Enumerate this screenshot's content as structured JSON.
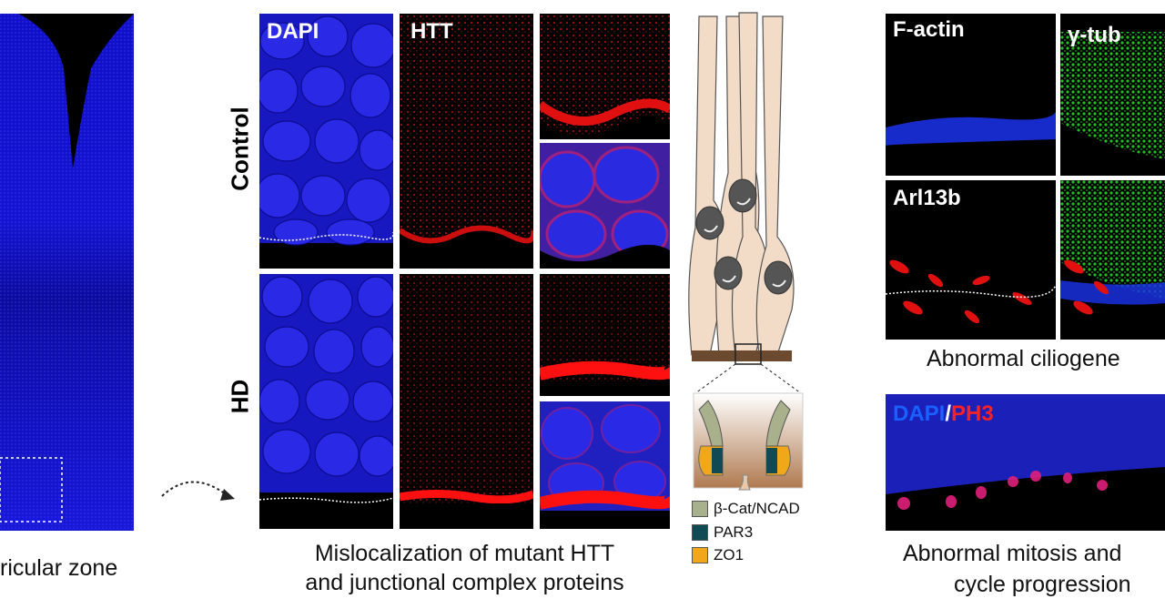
{
  "left_panel": {
    "caption": "ricular zone"
  },
  "middle_panel": {
    "row_labels": [
      "Control",
      "HD"
    ],
    "column_labels": [
      "DAPI",
      "HTT"
    ],
    "caption_line1": "Mislocalization of mutant HTT",
    "caption_line2": "and junctional complex proteins"
  },
  "diagram": {
    "legend": [
      {
        "label": "β-Cat/NCAD",
        "color": "#a8b08c"
      },
      {
        "label": "PAR3",
        "color": "#0f4a55"
      },
      {
        "label": "ZO1",
        "color": "#f0a81a"
      }
    ]
  },
  "right_panel": {
    "labels": [
      "F-actin",
      "γ-tub",
      "Arl13b"
    ],
    "caption_top": "Abnormal ciliogene",
    "mitosis_label_dapi": "DAPI",
    "mitosis_label_slash": "/",
    "mitosis_label_ph3": "PH3",
    "caption_bottom_line1": "Abnormal mitosis and",
    "caption_bottom_line2": "cycle progression"
  },
  "colors": {
    "dapi_blue": "#1a1ad8",
    "htt_red": "#e01010",
    "gamma_green": "#20c020",
    "cell_fill": "#f2dcc8"
  }
}
